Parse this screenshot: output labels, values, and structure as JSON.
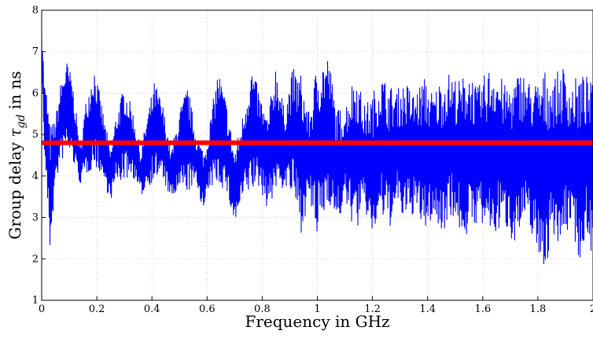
{
  "chart_data": {
    "type": "line",
    "xlabel": "Frequency in GHz",
    "ylabel_prefix": "Group delay ",
    "ylabel_symbol": "τ",
    "ylabel_subscript": "gd",
    "ylabel_suffix": " in ns",
    "xlim": [
      0,
      2
    ],
    "ylim": [
      1,
      8
    ],
    "xticks": [
      "0",
      "0.2",
      "0.4",
      "0.6",
      "0.8",
      "1",
      "1.2",
      "1.4",
      "1.6",
      "1.8",
      "2"
    ],
    "yticks": [
      "1",
      "2",
      "3",
      "4",
      "5",
      "6",
      "7",
      "8"
    ],
    "grid": true,
    "series": [
      {
        "color": "#0000ff",
        "style": "oscillating measured trace (envelope)",
        "x": [
          0.0,
          0.01,
          0.02,
          0.03,
          0.05,
          0.07,
          0.09,
          0.11,
          0.14,
          0.16,
          0.19,
          0.21,
          0.25,
          0.27,
          0.3,
          0.33,
          0.36,
          0.38,
          0.41,
          0.44,
          0.47,
          0.5,
          0.53,
          0.56,
          0.59,
          0.61,
          0.64,
          0.67,
          0.7,
          0.73,
          0.76,
          0.79,
          0.82,
          0.85,
          0.88,
          0.91,
          0.94,
          0.97,
          1.0,
          1.04,
          1.07,
          1.1,
          1.14,
          1.17,
          1.2,
          1.23,
          1.26,
          1.29,
          1.32,
          1.35,
          1.39,
          1.42,
          1.45,
          1.48,
          1.52,
          1.55,
          1.58,
          1.61,
          1.64,
          1.68,
          1.71,
          1.74,
          1.77,
          1.8,
          1.83,
          1.86,
          1.89,
          1.92,
          1.95,
          1.98,
          2.0
        ],
        "upper": [
          7.7,
          6.3,
          6.0,
          5.2,
          5.4,
          6.3,
          6.8,
          6.4,
          4.7,
          5.8,
          6.7,
          6.0,
          4.6,
          5.5,
          6.2,
          5.6,
          4.6,
          5.4,
          6.3,
          5.7,
          4.6,
          5.6,
          6.2,
          5.0,
          4.6,
          5.3,
          6.6,
          5.8,
          4.6,
          5.5,
          6.7,
          6.0,
          5.4,
          6.8,
          5.6,
          6.6,
          6.5,
          5.5,
          6.8,
          6.95,
          5.6,
          5.7,
          6.6,
          5.7,
          6.0,
          6.5,
          6.2,
          6.1,
          6.3,
          6.0,
          6.4,
          6.0,
          6.4,
          6.5,
          6.3,
          6.7,
          6.1,
          6.5,
          6.8,
          6.2,
          6.3,
          6.6,
          6.3,
          6.3,
          6.6,
          6.4,
          6.7,
          6.2,
          6.5,
          6.4,
          6.2
        ],
        "lower": [
          6.5,
          4.5,
          3.4,
          2.15,
          3.8,
          4.3,
          4.6,
          4.4,
          3.8,
          4.0,
          4.2,
          4.1,
          3.4,
          3.8,
          3.9,
          4.0,
          3.5,
          3.7,
          3.9,
          3.9,
          3.4,
          3.6,
          3.6,
          3.8,
          3.1,
          3.7,
          3.8,
          3.6,
          2.8,
          3.4,
          3.6,
          3.7,
          3.2,
          3.6,
          3.7,
          3.5,
          2.6,
          3.4,
          2.4,
          3.4,
          2.8,
          3.3,
          2.6,
          3.2,
          2.5,
          3.0,
          2.7,
          3.2,
          2.8,
          3.1,
          2.6,
          3.0,
          2.5,
          3.1,
          2.6,
          2.5,
          2.9,
          2.6,
          2.5,
          2.8,
          2.4,
          2.6,
          2.8,
          2.0,
          1.75,
          2.6,
          2.2,
          2.9,
          1.9,
          2.6,
          1.95
        ]
      },
      {
        "color": "#ff0000",
        "style": "constant reference line",
        "x": [
          0,
          2
        ],
        "values": [
          4.8,
          4.8
        ]
      }
    ]
  }
}
